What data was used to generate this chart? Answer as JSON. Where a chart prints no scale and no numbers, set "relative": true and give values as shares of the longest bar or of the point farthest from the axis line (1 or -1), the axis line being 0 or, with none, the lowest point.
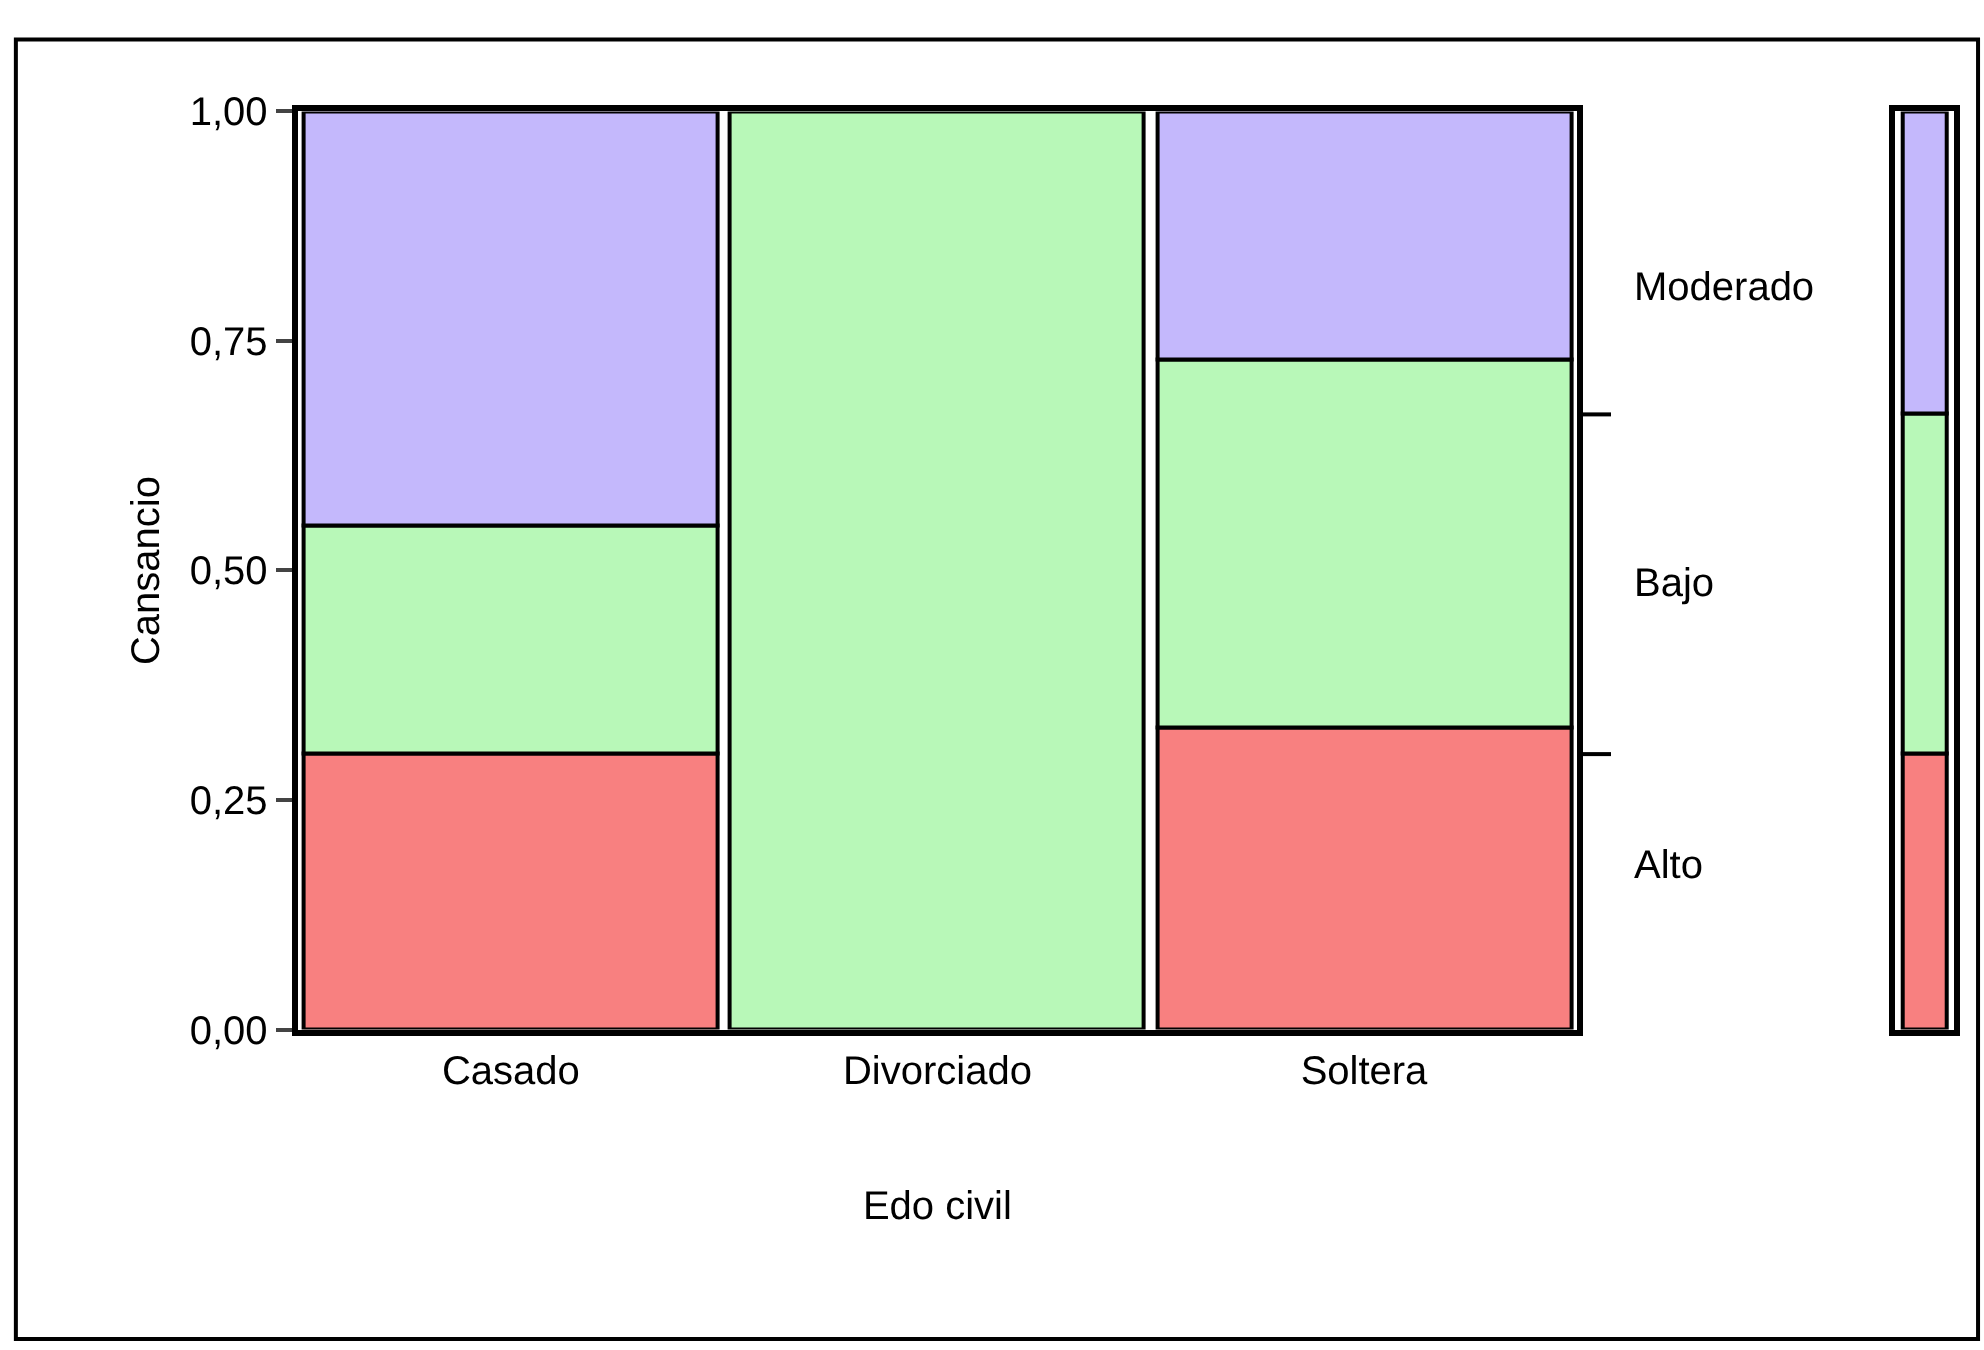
{
  "chart_data": [
    {
      "type": "bar",
      "stacked": true,
      "xlabel": "Edo civil",
      "ylabel": "Cansancio",
      "categories": [
        "Casado",
        "Divorciado",
        "Soltera"
      ],
      "ylim": [
        0,
        1
      ],
      "yticks": [
        {
          "value": 0,
          "label": "0,00"
        },
        {
          "value": 0.25,
          "label": "0,25"
        },
        {
          "value": 0.5,
          "label": "0,50"
        },
        {
          "value": 0.75,
          "label": "0,75"
        },
        {
          "value": 1,
          "label": "1,00"
        }
      ],
      "series": [
        {
          "name": "Alto",
          "color": "#f88080",
          "values": [
            0.3,
            0,
            0.33
          ]
        },
        {
          "name": "Bajo",
          "color": "#b8f8b8",
          "values": [
            0.25,
            1,
            0.4
          ]
        },
        {
          "name": "Moderado",
          "color": "#c4b8fc",
          "values": [
            0.45,
            0,
            0.27
          ]
        }
      ]
    },
    {
      "type": "bar",
      "stacked": true,
      "relative": true,
      "categories": [
        null
      ],
      "tick_labels": false,
      "series": [
        {
          "color": "#f88080",
          "values": [
            0.3
          ]
        },
        {
          "color": "#b8f8b8",
          "values": [
            0.37
          ]
        },
        {
          "color": "#c4b8fc",
          "values": [
            0.33
          ]
        }
      ]
    }
  ]
}
